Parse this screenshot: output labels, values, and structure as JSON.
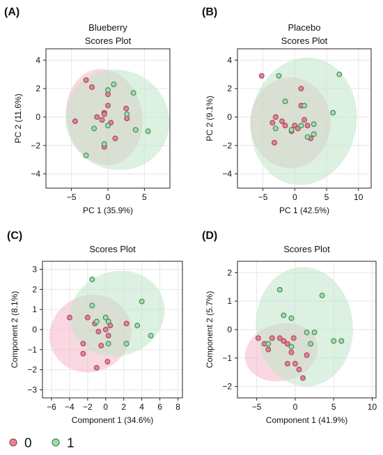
{
  "legend": {
    "items": [
      {
        "label": "0",
        "fill": "#d98a96",
        "stroke": "#b03a5a"
      },
      {
        "label": "1",
        "fill": "#a8d8b0",
        "stroke": "#3a8a4a"
      }
    ]
  },
  "colors": {
    "group0_ellipse": "#f4b8c8",
    "group1_ellipse": "#bfe6c9",
    "overlap": "#c9b29a",
    "grid": "#e6e6e6"
  },
  "chart_data": [
    {
      "panel": "(A)",
      "type": "scatter",
      "title": [
        "Blueberry",
        "Scores Plot"
      ],
      "xlabel": "PC 1 (35.9%)",
      "ylabel": "PC 2 (11.6%)",
      "xlim": [
        -8.5,
        8.5
      ],
      "ylim": [
        -5,
        4.8
      ],
      "xticks": [
        -5,
        0,
        5
      ],
      "yticks": [
        -4,
        -2,
        0,
        2,
        4
      ],
      "grid": true,
      "series": [
        {
          "name": "0",
          "points": [
            [
              -4.5,
              -0.3
            ],
            [
              -3,
              2.6
            ],
            [
              -2.2,
              2.1
            ],
            [
              -1.5,
              0
            ],
            [
              -0.8,
              -0.2
            ],
            [
              -0.5,
              0.3
            ],
            [
              -0.5,
              0.2
            ],
            [
              0,
              0.8
            ],
            [
              0,
              1.6
            ],
            [
              0.4,
              -0.4
            ],
            [
              1,
              -1.5
            ],
            [
              2.5,
              0.6
            ],
            [
              2.6,
              -0.1
            ],
            [
              -0.5,
              -2.1
            ]
          ]
        },
        {
          "name": "1",
          "points": [
            [
              -1.9,
              -0.8
            ],
            [
              -3,
              -2.7
            ],
            [
              0,
              1.9
            ],
            [
              0.8,
              2.3
            ],
            [
              0,
              -0.6
            ],
            [
              3.5,
              1.7
            ],
            [
              3.8,
              -0.9
            ],
            [
              5.5,
              -1
            ],
            [
              2.6,
              0.2
            ],
            [
              -0.5,
              -1.9
            ]
          ]
        }
      ],
      "ellipses": [
        {
          "group": "0",
          "center": [
            -0.5,
            0
          ],
          "rx": 5.2,
          "ry": 3.4,
          "angle_deg": -10
        },
        {
          "group": "1",
          "center": [
            1.3,
            -0.2
          ],
          "rx": 7.2,
          "ry": 3.5,
          "angle_deg": 25
        }
      ]
    },
    {
      "panel": "(B)",
      "type": "scatter",
      "title": [
        "Placebo",
        "Scores Plot"
      ],
      "xlabel": "PC 1 (42.5%)",
      "ylabel": "PC 2 (9.1%)",
      "xlim": [
        -9,
        12
      ],
      "ylim": [
        -5,
        4.8
      ],
      "xticks": [
        -5,
        0,
        5,
        10
      ],
      "yticks": [
        -4,
        -2,
        0,
        2,
        4
      ],
      "grid": true,
      "series": [
        {
          "name": "0",
          "points": [
            [
              -5.2,
              2.9
            ],
            [
              -3,
              0
            ],
            [
              -3.5,
              -0.4
            ],
            [
              -3.2,
              -1.8
            ],
            [
              -2,
              -0.3
            ],
            [
              -1.5,
              -0.6
            ],
            [
              -0.5,
              -1
            ],
            [
              0,
              -0.6
            ],
            [
              0.5,
              -0.8
            ],
            [
              1,
              2
            ],
            [
              1.5,
              -0.2
            ],
            [
              2,
              -0.6
            ],
            [
              2.5,
              -1.5
            ],
            [
              1,
              0.8
            ]
          ]
        },
        {
          "name": "1",
          "points": [
            [
              -2.5,
              2.9
            ],
            [
              -1.5,
              1.1
            ],
            [
              -0.5,
              -0.9
            ],
            [
              1.5,
              0.8
            ],
            [
              2,
              -1.4
            ],
            [
              3,
              -0.5
            ],
            [
              3,
              -1.2
            ],
            [
              6,
              0.3
            ],
            [
              7,
              3
            ],
            [
              -3,
              -0.8
            ],
            [
              1,
              -0.6
            ]
          ]
        }
      ],
      "ellipses": [
        {
          "group": "0",
          "center": [
            -0.7,
            -0.4
          ],
          "rx": 6.3,
          "ry": 3.2,
          "angle_deg": 0
        },
        {
          "group": "1",
          "center": [
            1.4,
            -0.3
          ],
          "rx": 8.3,
          "ry": 4.5,
          "angle_deg": 10
        }
      ]
    },
    {
      "panel": "(C)",
      "type": "scatter",
      "title": [
        "Scores Plot"
      ],
      "xlabel": "Component 1 (34.6%)",
      "ylabel": "Component 2 (8.1%)",
      "xlim": [
        -7,
        8.5
      ],
      "ylim": [
        -3.4,
        3.4
      ],
      "xticks": [
        -6,
        -4,
        -2,
        0,
        2,
        4,
        6,
        8
      ],
      "yticks": [
        -3,
        -2,
        -1,
        0,
        1,
        2,
        3
      ],
      "grid": true,
      "series": [
        {
          "name": "0",
          "points": [
            [
              -4,
              0.6
            ],
            [
              -2,
              0.6
            ],
            [
              -1.2,
              0.3
            ],
            [
              -2.5,
              -0.7
            ],
            [
              -2.5,
              -1.2
            ],
            [
              -1,
              -1.9
            ],
            [
              0.2,
              -1.6
            ],
            [
              -0.5,
              -0.8
            ],
            [
              0.3,
              -0.3
            ],
            [
              0,
              0
            ],
            [
              0.5,
              0.2
            ],
            [
              2.3,
              0.3
            ],
            [
              -0.8,
              -0.1
            ]
          ]
        },
        {
          "name": "1",
          "points": [
            [
              -1.5,
              2.5
            ],
            [
              -1.5,
              1.2
            ],
            [
              -1,
              0.4
            ],
            [
              0,
              0.6
            ],
            [
              0.3,
              0.4
            ],
            [
              0.3,
              -0.7
            ],
            [
              2.3,
              -0.7
            ],
            [
              3.5,
              0.2
            ],
            [
              4,
              1.4
            ],
            [
              5,
              -0.3
            ]
          ]
        }
      ],
      "ellipses": [
        {
          "group": "0",
          "center": [
            -1.7,
            -0.2
          ],
          "rx": 4.6,
          "ry": 1.9,
          "angle_deg": -25
        },
        {
          "group": "1",
          "center": [
            1.3,
            0.8
          ],
          "rx": 5.3,
          "ry": 2.1,
          "angle_deg": -18
        }
      ]
    },
    {
      "panel": "(D)",
      "type": "scatter",
      "title": [
        "Scores Plot"
      ],
      "xlabel": "Component 1 (41.9%)",
      "ylabel": "Component 2 (5.7%)",
      "xlim": [
        -7.5,
        10.5
      ],
      "ylim": [
        -2.4,
        2.4
      ],
      "xticks": [
        -5,
        0,
        5,
        10
      ],
      "yticks": [
        -2,
        -1,
        0,
        1,
        2
      ],
      "grid": true,
      "series": [
        {
          "name": "0",
          "points": [
            [
              -4.8,
              -0.3
            ],
            [
              -4,
              -0.5
            ],
            [
              -3.5,
              -0.7
            ],
            [
              -3,
              -0.3
            ],
            [
              -2,
              -0.3
            ],
            [
              -1.5,
              -0.4
            ],
            [
              -1,
              -0.5
            ],
            [
              -0.5,
              -0.8
            ],
            [
              0,
              -1.2
            ],
            [
              0.5,
              -1.4
            ],
            [
              1,
              -1.7
            ],
            [
              1.5,
              -0.9
            ],
            [
              -1,
              -1.2
            ],
            [
              -0.2,
              -0.3
            ]
          ]
        },
        {
          "name": "1",
          "points": [
            [
              -2,
              1.4
            ],
            [
              -1.5,
              0.5
            ],
            [
              -0.5,
              0.4
            ],
            [
              1.5,
              -0.1
            ],
            [
              2.5,
              -0.1
            ],
            [
              3.5,
              1.2
            ],
            [
              5,
              -0.4
            ],
            [
              6,
              -0.4
            ],
            [
              2,
              -0.5
            ],
            [
              -3.5,
              -0.5
            ],
            [
              -0.5,
              -0.6
            ]
          ]
        }
      ],
      "ellipses": [
        {
          "group": "0",
          "center": [
            -1.8,
            -0.8
          ],
          "rx": 4.8,
          "ry": 1.0,
          "angle_deg": -15
        },
        {
          "group": "1",
          "center": [
            1.2,
            0.1
          ],
          "rx": 6.3,
          "ry": 2.1,
          "angle_deg": -5
        }
      ]
    }
  ]
}
